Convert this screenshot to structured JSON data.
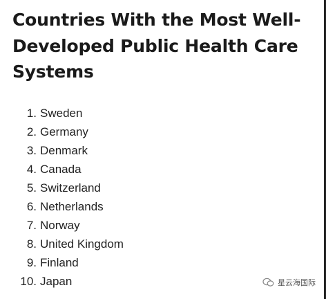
{
  "header": {
    "title": "Countries With the Most Well-Developed Public Health Care Systems"
  },
  "list": {
    "items": [
      {
        "number": "1.",
        "name": "Sweden"
      },
      {
        "number": "2.",
        "name": "Germany"
      },
      {
        "number": "3.",
        "name": "Denmark"
      },
      {
        "number": "4.",
        "name": "Canada"
      },
      {
        "number": "5.",
        "name": "Switzerland"
      },
      {
        "number": "6.",
        "name": "Netherlands"
      },
      {
        "number": "7.",
        "name": "Norway"
      },
      {
        "number": "8.",
        "name": "United Kingdom"
      },
      {
        "number": "9.",
        "name": "Finland"
      },
      {
        "number": "10.",
        "name": "Japan"
      }
    ]
  },
  "watermark": {
    "text": "星云海国际"
  }
}
